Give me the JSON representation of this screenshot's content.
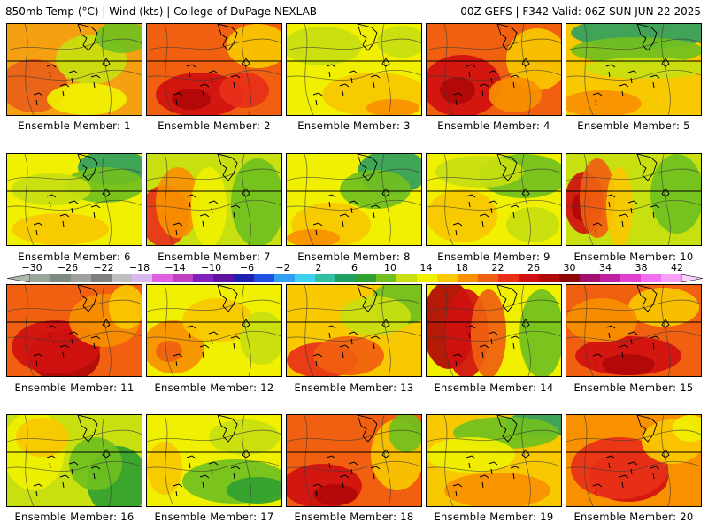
{
  "header": {
    "left": "850mb Temp (°C) | Wind (kts) | College of DuPage NEXLAB",
    "right": "00Z GEFS | F342 Valid: 06Z SUN JUN 22 2025"
  },
  "colorbar": {
    "tick_labels": [
      "−30",
      "−26",
      "−22",
      "−18",
      "−14",
      "−10",
      "−6",
      "−2",
      "2",
      "6",
      "10",
      "14",
      "18",
      "22",
      "26",
      "30",
      "34",
      "38",
      "42"
    ],
    "colors": [
      "#9aa69a",
      "#7f8a80",
      "#a0a0a0",
      "#7f7f7f",
      "#bfbfbf",
      "#d8b8f0",
      "#e060e0",
      "#c040c0",
      "#8020c0",
      "#6010a0",
      "#2020b0",
      "#2050e0",
      "#30a0f0",
      "#40d0f0",
      "#30c0a0",
      "#20a060",
      "#30a030",
      "#70c020",
      "#c8e010",
      "#f0f000",
      "#f8c800",
      "#f89000",
      "#f06010",
      "#e83018",
      "#d01010",
      "#b00808",
      "#8c0404",
      "#a0106c",
      "#c020a0",
      "#e040d0",
      "#f070f0",
      "#f8a0f8"
    ]
  },
  "panels": [
    {
      "label": "Ensemble Member: 1",
      "bg": "#f4a010",
      "blobs": [
        {
          "c": "#e86018",
          "cx": 30,
          "cy": 70,
          "rx": 38,
          "ry": 30
        },
        {
          "c": "#c8e010",
          "cx": 95,
          "cy": 40,
          "rx": 40,
          "ry": 28
        },
        {
          "c": "#70c020",
          "cx": 130,
          "cy": 15,
          "rx": 30,
          "ry": 18
        },
        {
          "c": "#f0f000",
          "cx": 90,
          "cy": 85,
          "rx": 45,
          "ry": 18
        }
      ]
    },
    {
      "label": "Ensemble Member: 2",
      "bg": "#f06010",
      "blobs": [
        {
          "c": "#d01010",
          "cx": 60,
          "cy": 80,
          "rx": 50,
          "ry": 25
        },
        {
          "c": "#b00808",
          "cx": 50,
          "cy": 85,
          "rx": 22,
          "ry": 12
        },
        {
          "c": "#f8c800",
          "cx": 125,
          "cy": 25,
          "rx": 35,
          "ry": 25
        },
        {
          "c": "#e83018",
          "cx": 110,
          "cy": 75,
          "rx": 28,
          "ry": 20
        }
      ]
    },
    {
      "label": "Ensemble Member: 3",
      "bg": "#f0f000",
      "blobs": [
        {
          "c": "#c8e010",
          "cx": 40,
          "cy": 25,
          "rx": 45,
          "ry": 22
        },
        {
          "c": "#f8c800",
          "cx": 100,
          "cy": 80,
          "rx": 60,
          "ry": 25
        },
        {
          "c": "#f89000",
          "cx": 120,
          "cy": 95,
          "rx": 30,
          "ry": 10
        },
        {
          "c": "#c8e010",
          "cx": 130,
          "cy": 20,
          "rx": 28,
          "ry": 18
        }
      ]
    },
    {
      "label": "Ensemble Member: 4",
      "bg": "#f06010",
      "blobs": [
        {
          "c": "#d01010",
          "cx": 40,
          "cy": 70,
          "rx": 45,
          "ry": 35
        },
        {
          "c": "#b00808",
          "cx": 35,
          "cy": 75,
          "rx": 20,
          "ry": 15
        },
        {
          "c": "#f8c800",
          "cx": 125,
          "cy": 40,
          "rx": 35,
          "ry": 35
        },
        {
          "c": "#f89000",
          "cx": 100,
          "cy": 80,
          "rx": 30,
          "ry": 20
        }
      ]
    },
    {
      "label": "Ensemble Member: 5",
      "bg": "#f8c800",
      "blobs": [
        {
          "c": "#30a060",
          "cx": 85,
          "cy": 10,
          "rx": 80,
          "ry": 18
        },
        {
          "c": "#70c020",
          "cx": 80,
          "cy": 30,
          "rx": 75,
          "ry": 15
        },
        {
          "c": "#c8e010",
          "cx": 90,
          "cy": 50,
          "rx": 70,
          "ry": 12
        },
        {
          "c": "#f89000",
          "cx": 40,
          "cy": 90,
          "rx": 45,
          "ry": 15
        }
      ]
    },
    {
      "label": "Ensemble Member: 6",
      "bg": "#f0f000",
      "blobs": [
        {
          "c": "#30a060",
          "cx": 120,
          "cy": 15,
          "rx": 40,
          "ry": 20
        },
        {
          "c": "#70c020",
          "cx": 110,
          "cy": 35,
          "rx": 45,
          "ry": 20
        },
        {
          "c": "#c8e010",
          "cx": 50,
          "cy": 40,
          "rx": 45,
          "ry": 18
        },
        {
          "c": "#f8c800",
          "cx": 60,
          "cy": 85,
          "rx": 55,
          "ry": 18
        }
      ]
    },
    {
      "label": "Ensemble Member: 7",
      "bg": "#c8e010",
      "blobs": [
        {
          "c": "#e83018",
          "cx": 20,
          "cy": 70,
          "rx": 28,
          "ry": 35
        },
        {
          "c": "#f89000",
          "cx": 35,
          "cy": 55,
          "rx": 25,
          "ry": 40
        },
        {
          "c": "#f0f000",
          "cx": 70,
          "cy": 60,
          "rx": 20,
          "ry": 45
        },
        {
          "c": "#70c020",
          "cx": 125,
          "cy": 55,
          "rx": 30,
          "ry": 50
        }
      ]
    },
    {
      "label": "Ensemble Member: 8",
      "bg": "#f0f000",
      "blobs": [
        {
          "c": "#30a060",
          "cx": 120,
          "cy": 20,
          "rx": 40,
          "ry": 25
        },
        {
          "c": "#70c020",
          "cx": 100,
          "cy": 40,
          "rx": 40,
          "ry": 22
        },
        {
          "c": "#f8c800",
          "cx": 50,
          "cy": 80,
          "rx": 45,
          "ry": 25
        },
        {
          "c": "#f89000",
          "cx": 30,
          "cy": 95,
          "rx": 30,
          "ry": 10
        }
      ]
    },
    {
      "label": "Ensemble Member: 9",
      "bg": "#f0f000",
      "blobs": [
        {
          "c": "#70c020",
          "cx": 110,
          "cy": 25,
          "rx": 50,
          "ry": 25
        },
        {
          "c": "#c8e010",
          "cx": 60,
          "cy": 20,
          "rx": 50,
          "ry": 18
        },
        {
          "c": "#f8c800",
          "cx": 40,
          "cy": 70,
          "rx": 40,
          "ry": 30
        },
        {
          "c": "#c8e010",
          "cx": 120,
          "cy": 80,
          "rx": 30,
          "ry": 20
        }
      ]
    },
    {
      "label": "Ensemble Member: 10",
      "bg": "#c8e010",
      "blobs": [
        {
          "c": "#d01010",
          "cx": 20,
          "cy": 55,
          "rx": 22,
          "ry": 35
        },
        {
          "c": "#b00808",
          "cx": 18,
          "cy": 60,
          "rx": 12,
          "ry": 16
        },
        {
          "c": "#f06010",
          "cx": 35,
          "cy": 50,
          "rx": 20,
          "ry": 45
        },
        {
          "c": "#f8c800",
          "cx": 60,
          "cy": 60,
          "rx": 15,
          "ry": 45
        },
        {
          "c": "#70c020",
          "cx": 125,
          "cy": 45,
          "rx": 30,
          "ry": 45
        }
      ]
    },
    {
      "label": "Ensemble Member: 11",
      "bg": "#f06010",
      "blobs": [
        {
          "c": "#b00808",
          "cx": 65,
          "cy": 80,
          "rx": 40,
          "ry": 30
        },
        {
          "c": "#d01010",
          "cx": 55,
          "cy": 70,
          "rx": 50,
          "ry": 30
        },
        {
          "c": "#f89000",
          "cx": 110,
          "cy": 40,
          "rx": 40,
          "ry": 30
        },
        {
          "c": "#f8c800",
          "cx": 135,
          "cy": 25,
          "rx": 20,
          "ry": 25
        }
      ]
    },
    {
      "label": "Ensemble Member: 12",
      "bg": "#f0f000",
      "blobs": [
        {
          "c": "#f89000",
          "cx": 30,
          "cy": 70,
          "rx": 35,
          "ry": 30
        },
        {
          "c": "#f06010",
          "cx": 25,
          "cy": 75,
          "rx": 15,
          "ry": 12
        },
        {
          "c": "#f8c800",
          "cx": 80,
          "cy": 40,
          "rx": 40,
          "ry": 25
        },
        {
          "c": "#c8e010",
          "cx": 130,
          "cy": 60,
          "rx": 25,
          "ry": 30
        }
      ]
    },
    {
      "label": "Ensemble Member: 13",
      "bg": "#f8c800",
      "blobs": [
        {
          "c": "#70c020",
          "cx": 130,
          "cy": 20,
          "rx": 35,
          "ry": 25
        },
        {
          "c": "#c8e010",
          "cx": 100,
          "cy": 35,
          "rx": 40,
          "ry": 22
        },
        {
          "c": "#e83018",
          "cx": 40,
          "cy": 85,
          "rx": 40,
          "ry": 20
        },
        {
          "c": "#f06010",
          "cx": 70,
          "cy": 80,
          "rx": 40,
          "ry": 22
        }
      ]
    },
    {
      "label": "Ensemble Member: 14",
      "bg": "#f0f000",
      "blobs": [
        {
          "c": "#b00808",
          "cx": 25,
          "cy": 45,
          "rx": 30,
          "ry": 50
        },
        {
          "c": "#d01010",
          "cx": 45,
          "cy": 55,
          "rx": 25,
          "ry": 50
        },
        {
          "c": "#f06010",
          "cx": 70,
          "cy": 55,
          "rx": 20,
          "ry": 50
        },
        {
          "c": "#70c020",
          "cx": 130,
          "cy": 55,
          "rx": 25,
          "ry": 50
        }
      ]
    },
    {
      "label": "Ensemble Member: 15",
      "bg": "#f06010",
      "blobs": [
        {
          "c": "#d01010",
          "cx": 70,
          "cy": 80,
          "rx": 60,
          "ry": 22
        },
        {
          "c": "#b00808",
          "cx": 70,
          "cy": 90,
          "rx": 30,
          "ry": 12
        },
        {
          "c": "#f8c800",
          "cx": 110,
          "cy": 25,
          "rx": 40,
          "ry": 22
        },
        {
          "c": "#f89000",
          "cx": 40,
          "cy": 40,
          "rx": 40,
          "ry": 25
        }
      ]
    },
    {
      "label": "Ensemble Member: 16",
      "bg": "#c8e010",
      "blobs": [
        {
          "c": "#f0f000",
          "cx": 30,
          "cy": 40,
          "rx": 35,
          "ry": 45
        },
        {
          "c": "#f8c800",
          "cx": 40,
          "cy": 25,
          "rx": 30,
          "ry": 22
        },
        {
          "c": "#30a030",
          "cx": 125,
          "cy": 75,
          "rx": 35,
          "ry": 40
        },
        {
          "c": "#70c020",
          "cx": 100,
          "cy": 55,
          "rx": 30,
          "ry": 30
        }
      ]
    },
    {
      "label": "Ensemble Member: 17",
      "bg": "#f0f000",
      "blobs": [
        {
          "c": "#70c020",
          "cx": 100,
          "cy": 75,
          "rx": 60,
          "ry": 25
        },
        {
          "c": "#30a030",
          "cx": 125,
          "cy": 85,
          "rx": 35,
          "ry": 15
        },
        {
          "c": "#c8e010",
          "cx": 110,
          "cy": 25,
          "rx": 40,
          "ry": 20
        },
        {
          "c": "#f8c800",
          "cx": 20,
          "cy": 60,
          "rx": 20,
          "ry": 30
        }
      ]
    },
    {
      "label": "Ensemble Member: 18",
      "bg": "#f06010",
      "blobs": [
        {
          "c": "#d01010",
          "cx": 40,
          "cy": 80,
          "rx": 45,
          "ry": 25
        },
        {
          "c": "#b00808",
          "cx": 55,
          "cy": 90,
          "rx": 25,
          "ry": 12
        },
        {
          "c": "#f8c800",
          "cx": 125,
          "cy": 45,
          "rx": 30,
          "ry": 40
        },
        {
          "c": "#70c020",
          "cx": 135,
          "cy": 20,
          "rx": 20,
          "ry": 22
        }
      ]
    },
    {
      "label": "Ensemble Member: 19",
      "bg": "#f8c800",
      "blobs": [
        {
          "c": "#30a060",
          "cx": 130,
          "cy": 10,
          "rx": 40,
          "ry": 15
        },
        {
          "c": "#70c020",
          "cx": 90,
          "cy": 20,
          "rx": 60,
          "ry": 18
        },
        {
          "c": "#f0f000",
          "cx": 50,
          "cy": 45,
          "rx": 50,
          "ry": 20
        },
        {
          "c": "#f89000",
          "cx": 80,
          "cy": 85,
          "rx": 60,
          "ry": 20
        }
      ]
    },
    {
      "label": "Ensemble Member: 20",
      "bg": "#f89000",
      "blobs": [
        {
          "c": "#d01010",
          "cx": 70,
          "cy": 70,
          "rx": 45,
          "ry": 28
        },
        {
          "c": "#e83018",
          "cx": 60,
          "cy": 60,
          "rx": 55,
          "ry": 35
        },
        {
          "c": "#f8c800",
          "cx": 120,
          "cy": 30,
          "rx": 35,
          "ry": 25
        },
        {
          "c": "#f0f000",
          "cx": 140,
          "cy": 15,
          "rx": 20,
          "ry": 15
        }
      ]
    }
  ]
}
